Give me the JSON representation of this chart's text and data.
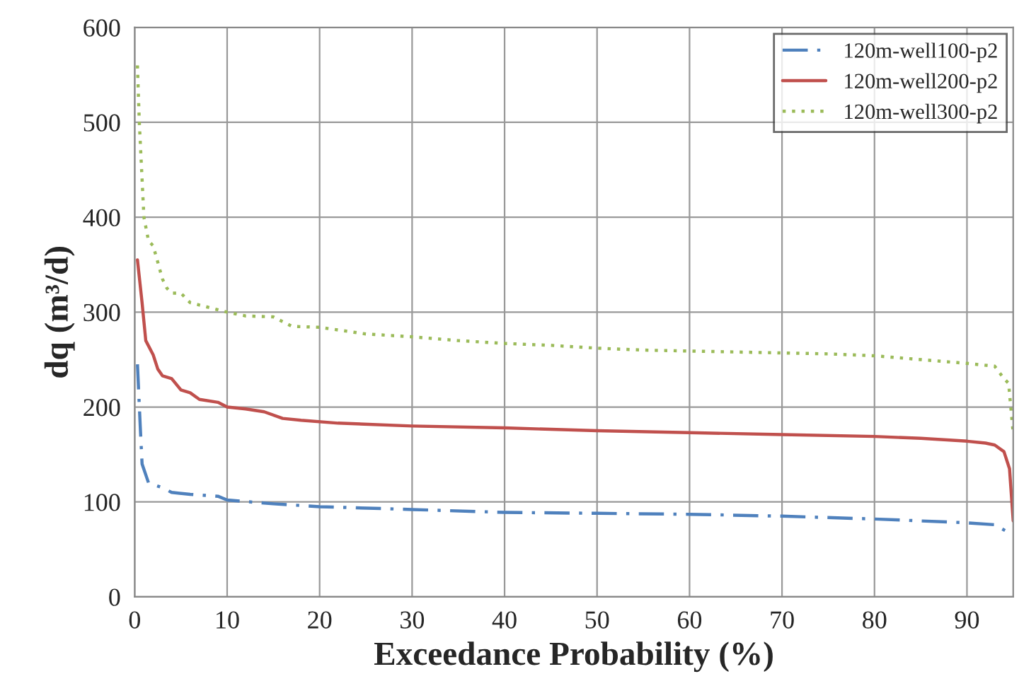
{
  "chart_data": {
    "type": "line",
    "xlabel": "Exceedance Probability (%)",
    "ylabel": "dq (m³/d)",
    "xlim": [
      0,
      95
    ],
    "xticks": [
      0,
      10,
      20,
      30,
      40,
      50,
      60,
      70,
      80,
      90
    ],
    "ylim": [
      0,
      600
    ],
    "yticks": [
      0,
      100,
      200,
      300,
      400,
      500,
      600
    ],
    "grid": true,
    "legend": "top right",
    "marker": "none",
    "series": [
      {
        "name": "120m-well100-p2",
        "color": "#4f81bd",
        "line_style": "dashed",
        "x": [
          0.3,
          0.6,
          0.8,
          1.5,
          3,
          4,
          6,
          9,
          10,
          15,
          20,
          30,
          40,
          50,
          60,
          70,
          80,
          90,
          93,
          95
        ],
        "values": [
          245,
          180,
          140,
          120,
          115,
          110,
          108,
          106,
          102,
          98,
          95,
          92,
          89,
          88,
          87,
          85,
          82,
          78,
          76,
          65
        ]
      },
      {
        "name": "120m-well200-p2",
        "color": "#c0504d",
        "line_style": "solid",
        "x": [
          0.3,
          0.8,
          1.2,
          2,
          2.5,
          3,
          4,
          5,
          6,
          7,
          9,
          10,
          12,
          14,
          16,
          18,
          22,
          30,
          40,
          50,
          60,
          70,
          80,
          85,
          90,
          92,
          93,
          94,
          94.6,
          95
        ],
        "values": [
          355,
          310,
          270,
          255,
          240,
          233,
          230,
          218,
          215,
          208,
          205,
          200,
          198,
          195,
          188,
          186,
          183,
          180,
          178,
          175,
          173,
          171,
          169,
          167,
          164,
          162,
          160,
          153,
          135,
          80
        ]
      },
      {
        "name": "120m-well300-p2",
        "color": "#9bbb59",
        "line_style": "dotted",
        "x": [
          0.3,
          0.5,
          1,
          1.5,
          2,
          3,
          3.5,
          4,
          5,
          6,
          8,
          10,
          12,
          15,
          17,
          20,
          25,
          30,
          35,
          40,
          45,
          50,
          55,
          60,
          65,
          70,
          75,
          80,
          85,
          90,
          93,
          94,
          94.5,
          95
        ],
        "values": [
          560,
          500,
          400,
          375,
          370,
          335,
          325,
          320,
          320,
          310,
          305,
          300,
          296,
          295,
          285,
          284,
          277,
          274,
          270,
          267,
          265,
          262,
          260,
          259,
          258,
          257,
          256,
          254,
          250,
          246,
          243,
          230,
          225,
          172
        ]
      }
    ]
  }
}
